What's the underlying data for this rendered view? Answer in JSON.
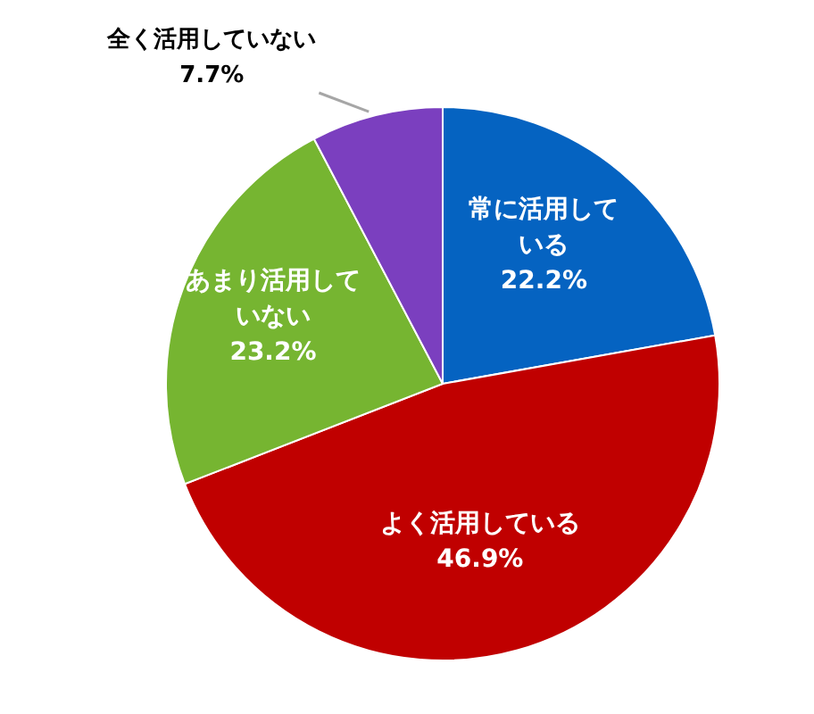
{
  "chart_data": {
    "type": "pie",
    "categories": [
      "常に活用している",
      "よく活用している",
      "あまり活用していない",
      "全く活用していない"
    ],
    "values": [
      22.2,
      46.9,
      23.2,
      7.7
    ],
    "colors": [
      "#0563c1",
      "#c00000",
      "#76b531",
      "#7b3fbf"
    ],
    "value_labels": [
      "22.2%",
      "46.9%",
      "23.2%",
      "7.7%"
    ],
    "legend": false
  }
}
